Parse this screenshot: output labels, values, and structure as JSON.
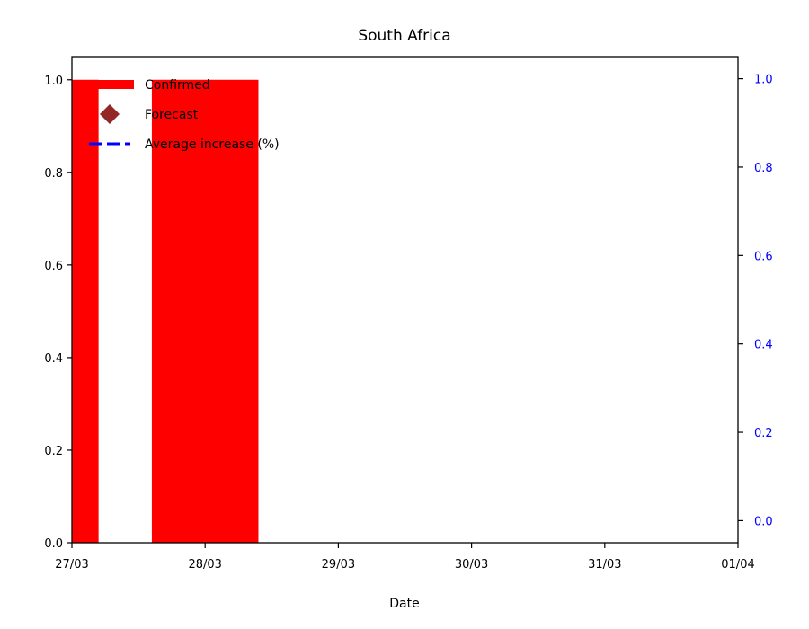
{
  "chart_data": {
    "type": "bar",
    "title": "South Africa",
    "xlabel": "Date",
    "ylabel": "",
    "ylabel_right": "",
    "x_ticks": [
      "27/03",
      "28/03",
      "29/03",
      "30/03",
      "31/03",
      "01/04"
    ],
    "x_range": [
      "27/03",
      "01/04"
    ],
    "ylim": [
      0,
      1.05
    ],
    "y_ticks": [
      "0.0",
      "0.2",
      "0.4",
      "0.6",
      "0.8",
      "1.0"
    ],
    "ylim_right": [
      -0.05,
      1.05
    ],
    "y_ticks_right": [
      "0.0",
      "0.2",
      "0.4",
      "0.6",
      "0.8",
      "1.0"
    ],
    "series": [
      {
        "name": "Confirmed",
        "kind": "bar",
        "color": "#ff0000",
        "points": [
          {
            "x": "27/03",
            "y": 1
          },
          {
            "x": "28/03",
            "y": 1
          }
        ]
      },
      {
        "name": "Forecast",
        "kind": "marker",
        "color": "#800000",
        "points": []
      },
      {
        "name": "Average increase (%)",
        "kind": "line",
        "color": "#0000ff",
        "points": []
      }
    ],
    "legend": "top-left",
    "grid": false
  }
}
